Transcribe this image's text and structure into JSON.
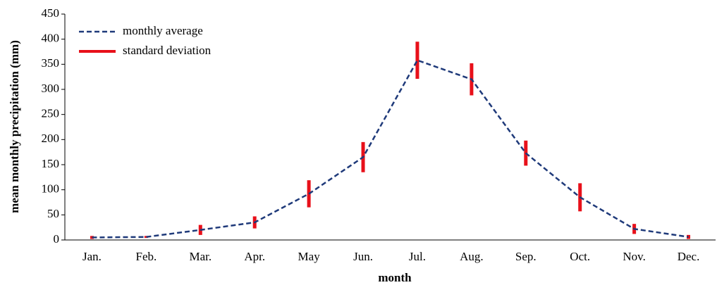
{
  "chart_data": {
    "type": "line",
    "x_label": "month",
    "y_label": "mean monthly precipitation (mm)",
    "categories": [
      "Jan.",
      "Feb.",
      "Mar.",
      "Apr.",
      "May",
      "Jun.",
      "Jul.",
      "Aug.",
      "Sep.",
      "Oct.",
      "Nov.",
      "Dec."
    ],
    "series": [
      {
        "name": "monthly average",
        "color": "#1f3a7a",
        "values": [
          5,
          6,
          20,
          35,
          92,
          165,
          358,
          320,
          173,
          85,
          22,
          6
        ]
      }
    ],
    "error_bars": {
      "name": "standard deviation",
      "color": "#e8101a",
      "values": [
        3,
        2,
        10,
        12,
        27,
        30,
        37,
        32,
        25,
        28,
        10,
        4
      ]
    },
    "ylim": [
      0,
      450
    ],
    "yticks": [
      0,
      50,
      100,
      150,
      200,
      250,
      300,
      350,
      400,
      450
    ],
    "grid": false,
    "legend": "top-left"
  }
}
